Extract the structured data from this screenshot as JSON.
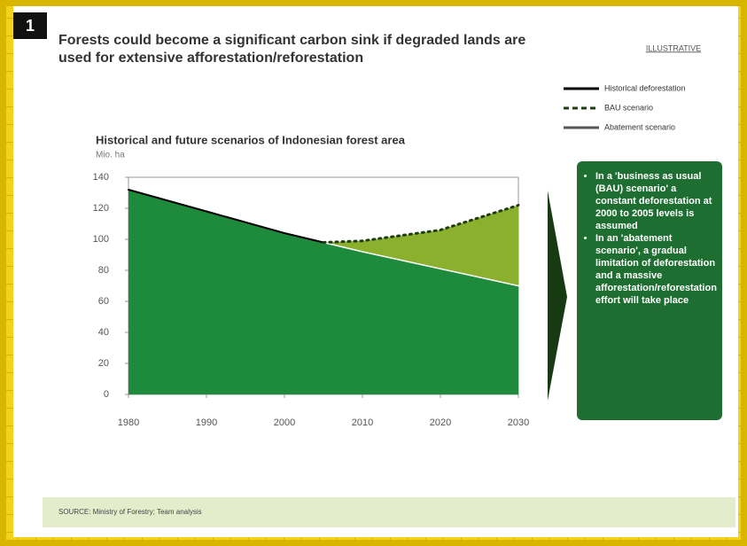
{
  "badge": "1",
  "slide_title": "Forests could become a significant carbon sink if degraded lands are used for extensive afforestation/reforestation",
  "tag": "ILLUSTRATIVE",
  "callout": [
    "In a 'business as usual (BAU) scenario' a constant deforestation at 2000 to 2005 levels is assumed",
    "In an 'abatement scenario', a gradual limitation of deforestation and a massive afforestation/reforestation effort will take place"
  ],
  "source": "SOURCE: Ministry of Forestry; Team analysis",
  "chart_data": {
    "type": "area",
    "title": "Historical and future scenarios of Indonesian forest area",
    "subtitle": "Mio. ha",
    "x": [
      1980,
      1990,
      2000,
      2005,
      2010,
      2020,
      2030
    ],
    "series": [
      {
        "name": "Historical deforestation",
        "color": "#000000",
        "values": [
          132,
          118,
          104,
          98,
          null,
          null,
          null
        ]
      },
      {
        "name": "BAU scenario",
        "color": "#1f3d12",
        "values": [
          null,
          null,
          null,
          98,
          99,
          106,
          122
        ]
      },
      {
        "name": "Abatement scenario",
        "color": "#ffffff",
        "values": [
          null,
          null,
          null,
          98,
          92,
          81,
          70
        ]
      }
    ],
    "area_color": "#1e8a3c",
    "gap_color": "#8bb02e",
    "xlim": [
      1980,
      2030
    ],
    "xticks": [
      1980,
      1990,
      2000,
      2010,
      2020,
      2030
    ],
    "ylim": [
      0,
      140
    ],
    "yticks": [
      0,
      20,
      40,
      60,
      80,
      100,
      120,
      140
    ]
  }
}
